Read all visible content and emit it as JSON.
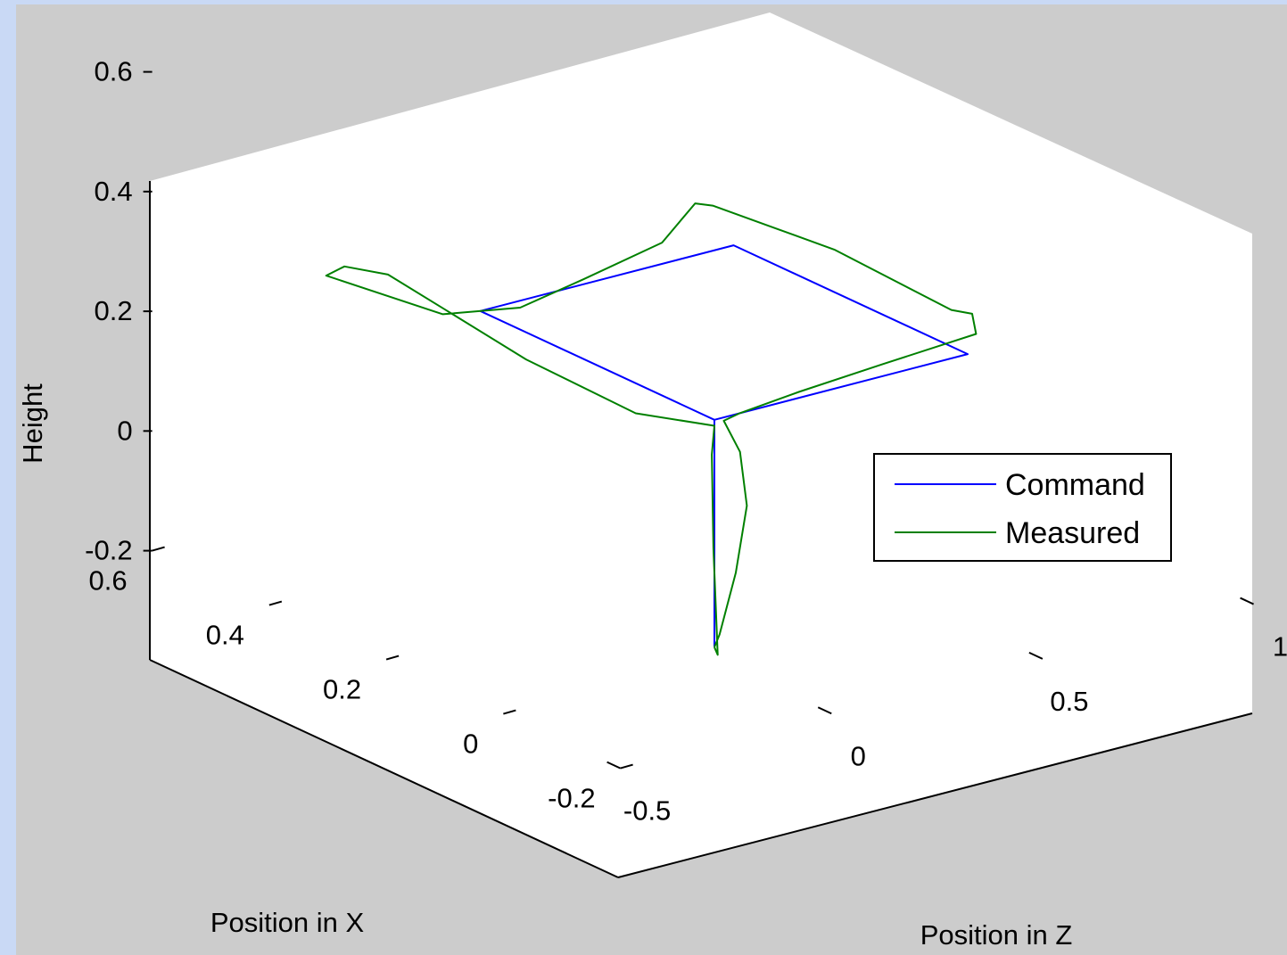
{
  "chart_data": {
    "type": "line",
    "projection": "3d",
    "title": "",
    "xlabel": "Position in X",
    "ylabel": "Height",
    "zlabel": "Position in Z",
    "xlim": [
      -0.2,
      0.6
    ],
    "ylim": [
      -0.2,
      0.6
    ],
    "zlim": [
      -0.5,
      1
    ],
    "x_ticks": [
      "0.6",
      "0.4",
      "0.2",
      "0",
      "-0.2"
    ],
    "y_ticks": [
      "0.6",
      "0.4",
      "0.2",
      "0",
      "-0.2"
    ],
    "z_ticks": [
      "-0.5",
      "0",
      "0.5",
      "1"
    ],
    "grid": false,
    "legend": {
      "position": "right",
      "entries": [
        "Command",
        "Measured"
      ]
    },
    "series": [
      {
        "name": "Command",
        "color": "#0000ff",
        "points": [
          {
            "x": 0.0,
            "z": 0.0,
            "h": -0.18
          },
          {
            "x": 0.0,
            "z": 0.0,
            "h": 0.2
          },
          {
            "x": 0.0,
            "z": 0.6,
            "h": 0.2
          },
          {
            "x": 0.4,
            "z": 0.6,
            "h": 0.2
          },
          {
            "x": 0.4,
            "z": 0.0,
            "h": 0.2
          },
          {
            "x": 0.0,
            "z": 0.0,
            "h": 0.2
          }
        ]
      },
      {
        "name": "Measured",
        "color": "#008000",
        "points": [
          {
            "x": 0.0,
            "z": 0.0,
            "h": -0.18
          },
          {
            "x": 0.02,
            "z": 0.04,
            "h": -0.175
          },
          {
            "x": 0.05,
            "z": 0.12,
            "h": -0.1
          },
          {
            "x": 0.06,
            "z": 0.16,
            "h": 0.0
          },
          {
            "x": 0.05,
            "z": 0.13,
            "h": 0.1
          },
          {
            "x": 0.02,
            "z": 0.05,
            "h": 0.18
          },
          {
            "x": 0.0,
            "z": 0.06,
            "h": 0.2
          },
          {
            "x": 0.0,
            "z": 0.2,
            "h": 0.21
          },
          {
            "x": 0.0,
            "z": 0.4,
            "h": 0.22
          },
          {
            "x": 0.0,
            "z": 0.62,
            "h": 0.23
          },
          {
            "x": 0.05,
            "z": 0.68,
            "h": 0.23
          },
          {
            "x": 0.1,
            "z": 0.7,
            "h": 0.21
          },
          {
            "x": 0.3,
            "z": 0.7,
            "h": 0.22
          },
          {
            "x": 0.45,
            "z": 0.62,
            "h": 0.24
          },
          {
            "x": 0.48,
            "z": 0.62,
            "h": 0.23
          },
          {
            "x": 0.45,
            "z": 0.5,
            "h": 0.2
          },
          {
            "x": 0.44,
            "z": 0.3,
            "h": 0.18
          },
          {
            "x": 0.44,
            "z": 0.15,
            "h": 0.16
          },
          {
            "x": 0.5,
            "z": 0.05,
            "h": 0.14
          },
          {
            "x": 0.62,
            "z": -0.06,
            "h": 0.17
          },
          {
            "x": 0.56,
            "z": -0.1,
            "h": 0.22
          },
          {
            "x": 0.5,
            "z": -0.08,
            "h": 0.23
          },
          {
            "x": 0.42,
            "z": -0.05,
            "h": 0.2
          },
          {
            "x": 0.3,
            "z": -0.03,
            "h": 0.17
          },
          {
            "x": 0.12,
            "z": -0.02,
            "h": 0.16
          },
          {
            "x": 0.0,
            "z": 0.0,
            "h": 0.19
          },
          {
            "x": -0.01,
            "z": -0.02,
            "h": 0.15
          },
          {
            "x": -0.02,
            "z": -0.03,
            "h": 0.0
          },
          {
            "x": -0.02,
            "z": -0.02,
            "h": -0.18
          },
          {
            "x": 0.0,
            "z": 0.0,
            "h": -0.18
          }
        ]
      }
    ]
  }
}
